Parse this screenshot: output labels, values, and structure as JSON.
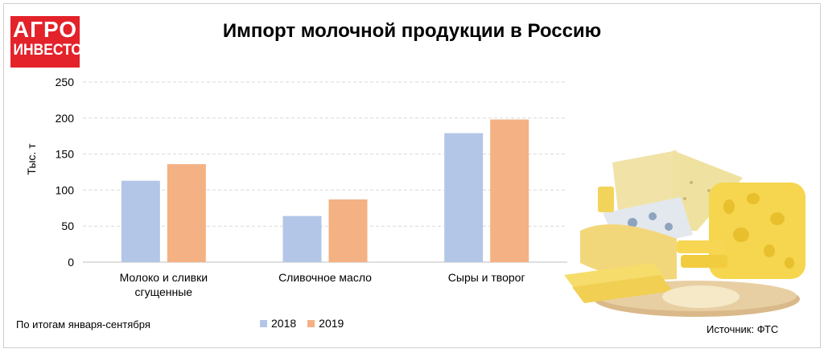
{
  "logo": {
    "line1": "АГРО",
    "line2": "ИНВЕСТОР"
  },
  "note": "По итогам января-сентября",
  "source": "Источник: ФТС",
  "image": {
    "icon": "cheese-platter-photo"
  },
  "chart_data": {
    "type": "bar",
    "title": "Импорт молочной продукции в Россию",
    "ylabel": "Тыс. т",
    "xlabel": "",
    "categories": [
      [
        "Молоко и сливки",
        "сгущенные"
      ],
      [
        "Сливочное масло"
      ],
      [
        "Сыры и творог"
      ]
    ],
    "series": [
      {
        "name": "2018",
        "color": "#b4c6e7",
        "values": [
          113,
          64,
          179
        ]
      },
      {
        "name": "2019",
        "color": "#f4b183",
        "values": [
          136,
          87,
          198
        ]
      }
    ],
    "ylim": [
      0,
      250
    ],
    "yticks": [
      0,
      50,
      100,
      150,
      200,
      250
    ],
    "grid": true,
    "legend": "bottom"
  }
}
